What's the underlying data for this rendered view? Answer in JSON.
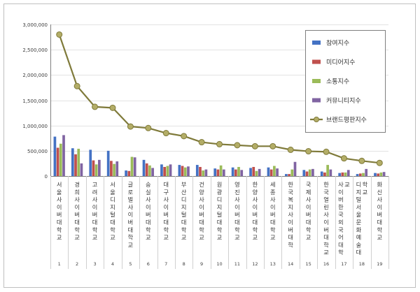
{
  "chart_data": {
    "type": "bar",
    "title": "",
    "xlabel": "",
    "ylabel": "",
    "ylim": [
      0,
      3000000
    ],
    "yticks": [
      "0",
      "500,000",
      "1,000,000",
      "1,500,000",
      "2,000,000",
      "2,500,000",
      "3,000,000"
    ],
    "grid": true,
    "legend_position": "top-right",
    "categories": [
      "서울사이버대학교",
      "경희사이버대학교",
      "고려사이버대학교",
      "서울디지털대학교",
      "글로벌사이버대학교",
      "숭실사이버대학교",
      "대구사이버대학교",
      "부산디지털대학교",
      "건양사이버대학교",
      "원광디지털대학교",
      "영진사이버대학교",
      "한양사이버대학교",
      "세종사이버대학교",
      "한국복지사이버대학",
      "국제사이버대학교",
      "한국열린사이버대학교",
      "사이버한국외국어대학교",
      "디지털서울문화예술대학교",
      "화신사이버대학교"
    ],
    "category_numbers": [
      "1",
      "2",
      "3",
      "4",
      "5",
      "6",
      "7",
      "8",
      "9",
      "10",
      "11",
      "12",
      "13",
      "14",
      "15",
      "16",
      "17",
      "18",
      "19"
    ],
    "series": [
      {
        "name": "참여지수",
        "kind": "bar",
        "color": "#4472c4",
        "values": [
          780000,
          550000,
          520000,
          500000,
          110000,
          320000,
          230000,
          220000,
          220000,
          150000,
          170000,
          160000,
          170000,
          40000,
          120000,
          90000,
          60000,
          40000,
          60000
        ]
      },
      {
        "name": "미디어지수",
        "kind": "bar",
        "color": "#c0504d",
        "values": [
          560000,
          430000,
          310000,
          300000,
          100000,
          250000,
          180000,
          200000,
          180000,
          130000,
          130000,
          180000,
          130000,
          40000,
          90000,
          70000,
          70000,
          50000,
          50000
        ]
      },
      {
        "name": "소통지수",
        "kind": "bar",
        "color": "#9bbb59",
        "values": [
          640000,
          540000,
          230000,
          240000,
          380000,
          210000,
          200000,
          170000,
          110000,
          210000,
          180000,
          100000,
          200000,
          130000,
          130000,
          220000,
          70000,
          60000,
          70000
        ]
      },
      {
        "name": "커뮤니티지수",
        "kind": "bar",
        "color": "#8064a2",
        "values": [
          810000,
          250000,
          320000,
          290000,
          370000,
          160000,
          230000,
          190000,
          130000,
          130000,
          120000,
          140000,
          150000,
          280000,
          140000,
          130000,
          120000,
          140000,
          80000
        ]
      },
      {
        "name": "브랜드평판지수",
        "kind": "line",
        "color": "#7f7a3a",
        "marker_color": "#b3ad67",
        "values": [
          2800000,
          1780000,
          1370000,
          1350000,
          980000,
          950000,
          850000,
          790000,
          670000,
          630000,
          610000,
          590000,
          590000,
          520000,
          490000,
          480000,
          350000,
          300000,
          260000
        ]
      }
    ]
  }
}
